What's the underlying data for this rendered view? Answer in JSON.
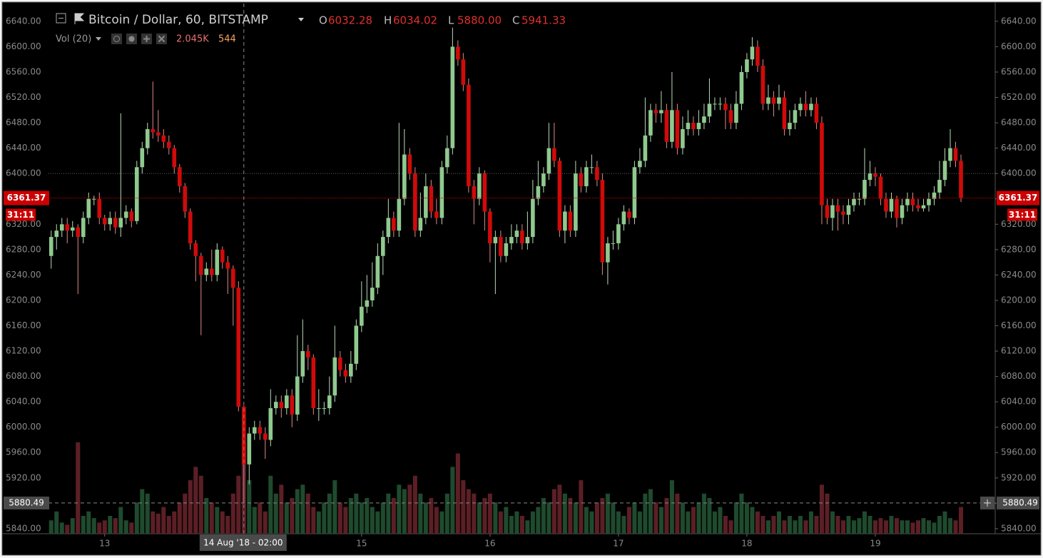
{
  "chart_data": {
    "type": "candlestick",
    "title": "Bitcoin / Dollar, 60, BITSTAMP",
    "ohlc_names": [
      "O",
      "H",
      "L",
      "C"
    ],
    "hover": {
      "index": 36,
      "time_label": "14 Aug '18 - 02:00",
      "price": 5880.49,
      "ohlc_labels": [
        "6032.28",
        "6034.02",
        "5880.00",
        "5941.33"
      ]
    },
    "volume_indicator": {
      "name": "Vol (20)",
      "value_label": "2.045K",
      "ma": 544
    },
    "countdown": "31:11",
    "reference_line": 6400,
    "up_color": "#8fc98f",
    "down_color": "#d10a0a",
    "up_volume_color": "#1f4a2e",
    "down_volume_color": "#5c1f26",
    "open": [
      6270,
      6300,
      6310,
      6320,
      6310,
      6315,
      6300,
      6330,
      6360,
      6360,
      6330,
      6320,
      6330,
      6315,
      6330,
      6340,
      6325,
      6410,
      6440,
      6470,
      6465,
      6460,
      6450,
      6440,
      6410,
      6380,
      6340,
      6290,
      6270,
      6240,
      6250,
      6240,
      6280,
      6260,
      6250,
      6220,
      6032.28,
      5941.33,
      5990,
      6000,
      5990,
      5980,
      6030,
      6040,
      6030,
      6050,
      6020,
      6080,
      6120,
      6110,
      6030,
      6030,
      6030,
      6050,
      6110,
      6090,
      6080,
      6100,
      6160,
      6190,
      6200,
      6220,
      6270,
      6300,
      6330,
      6310,
      6360,
      6430,
      6400,
      6310,
      6330,
      6380,
      6340,
      6330,
      6410,
      6440,
      6600,
      6580,
      6540,
      6380,
      6360,
      6400,
      6340,
      6290,
      6300,
      6270,
      6290,
      6300,
      6310,
      6290,
      6300,
      6360,
      6380,
      6400,
      6440,
      6420,
      6310,
      6340,
      6310,
      6400,
      6380,
      6410,
      6410,
      6390,
      6260,
      6290,
      6290,
      6320,
      6340,
      6330,
      6410,
      6420,
      6460,
      6500,
      6495,
      6500,
      6450,
      6500,
      6440,
      6470,
      6480,
      6470,
      6480,
      6490,
      6510,
      6510,
      6510,
      6500,
      6480,
      6510,
      6560,
      6580,
      6600,
      6570,
      6510,
      6520,
      6510,
      6520,
      6470,
      6480,
      6500,
      6510,
      6500,
      6510,
      6480,
      6350,
      6330,
      6350,
      6340,
      6335,
      6350,
      6360,
      6360,
      6390,
      6400,
      6395,
      6360,
      6340,
      6360,
      6330,
      6350,
      6360,
      6350,
      6345,
      6350,
      6360,
      6370,
      6390,
      6420,
      6440,
      6420
    ],
    "high": [
      6310,
      6320,
      6330,
      6330,
      6325,
      6320,
      6340,
      6370,
      6365,
      6370,
      6335,
      6340,
      6340,
      6495,
      6350,
      6345,
      6420,
      6450,
      6480,
      6545,
      6500,
      6470,
      6460,
      6445,
      6415,
      6385,
      6345,
      6295,
      6275,
      6260,
      6280,
      6290,
      6285,
      6270,
      6255,
      6230,
      6034.02,
      6000,
      6010,
      6010,
      6000,
      6060,
      6050,
      6050,
      6060,
      6060,
      6145,
      6170,
      6130,
      6115,
      6060,
      6040,
      6080,
      6160,
      6120,
      6100,
      6120,
      6170,
      6230,
      6240,
      6260,
      6290,
      6310,
      6360,
      6340,
      6480,
      6470,
      6440,
      6410,
      6370,
      6400,
      6390,
      6360,
      6420,
      6460,
      6630,
      6610,
      6590,
      6550,
      6390,
      6410,
      6405,
      6345,
      6310,
      6310,
      6300,
      6320,
      6320,
      6320,
      6340,
      6390,
      6420,
      6410,
      6480,
      6480,
      6425,
      6350,
      6350,
      6420,
      6410,
      6420,
      6430,
      6420,
      6400,
      6300,
      6310,
      6330,
      6350,
      6345,
      6420,
      6440,
      6520,
      6510,
      6510,
      6530,
      6510,
      6560,
      6510,
      6490,
      6500,
      6490,
      6500,
      6510,
      6550,
      6520,
      6520,
      6520,
      6510,
      6530,
      6570,
      6590,
      6615,
      6610,
      6580,
      6540,
      6530,
      6540,
      6530,
      6500,
      6510,
      6520,
      6530,
      6520,
      6520,
      6490,
      6360,
      6360,
      6360,
      6350,
      6360,
      6370,
      6370,
      6440,
      6420,
      6410,
      6400,
      6370,
      6370,
      6365,
      6360,
      6370,
      6370,
      6360,
      6360,
      6370,
      6380,
      6420,
      6440,
      6470,
      6450,
      6430
    ],
    "low": [
      6250,
      6280,
      6300,
      6290,
      6300,
      6210,
      6290,
      6320,
      6350,
      6320,
      6310,
      6310,
      6305,
      6300,
      6320,
      6315,
      6320,
      6400,
      6430,
      6455,
      6450,
      6440,
      6430,
      6400,
      6370,
      6330,
      6280,
      6230,
      6145,
      6230,
      6230,
      6230,
      6250,
      6210,
      6160,
      6025,
      5880,
      5910,
      5980,
      5980,
      5950,
      5970,
      6020,
      6015,
      6020,
      6000,
      6010,
      6070,
      6090,
      6020,
      6010,
      6020,
      6020,
      6040,
      6080,
      6070,
      6070,
      6090,
      6150,
      6180,
      6190,
      6210,
      6240,
      6290,
      6300,
      6300,
      6350,
      6390,
      6300,
      6300,
      6320,
      6330,
      6320,
      6320,
      6400,
      6430,
      6570,
      6530,
      6370,
      6320,
      6350,
      6310,
      6260,
      6210,
      6260,
      6260,
      6280,
      6290,
      6280,
      6280,
      6290,
      6350,
      6370,
      6390,
      6410,
      6300,
      6290,
      6300,
      6300,
      6370,
      6370,
      6400,
      6380,
      6240,
      6225,
      6280,
      6280,
      6310,
      6320,
      6320,
      6400,
      6410,
      6450,
      6480,
      6480,
      6440,
      6440,
      6430,
      6430,
      6460,
      6460,
      6460,
      6470,
      6480,
      6500,
      6500,
      6470,
      6470,
      6470,
      6500,
      6550,
      6570,
      6560,
      6500,
      6500,
      6490,
      6500,
      6460,
      6460,
      6470,
      6490,
      6490,
      6490,
      6470,
      6320,
      6320,
      6310,
      6310,
      6320,
      6320,
      6340,
      6350,
      6350,
      6380,
      6380,
      6350,
      6330,
      6330,
      6315,
      6320,
      6340,
      6340,
      6340,
      6340,
      6340,
      6350,
      6360,
      6380,
      6410,
      6410,
      6355
    ],
    "close": [
      6300,
      6310,
      6320,
      6310,
      6315,
      6300,
      6330,
      6360,
      6360,
      6330,
      6320,
      6330,
      6315,
      6330,
      6340,
      6325,
      6410,
      6440,
      6470,
      6465,
      6460,
      6450,
      6440,
      6410,
      6380,
      6340,
      6290,
      6270,
      6240,
      6250,
      6240,
      6280,
      6260,
      6250,
      6220,
      6032.28,
      5941.33,
      5990,
      6000,
      5990,
      5980,
      6030,
      6040,
      6030,
      6050,
      6020,
      6080,
      6120,
      6110,
      6030,
      6030,
      6030,
      6050,
      6110,
      6090,
      6080,
      6100,
      6160,
      6190,
      6200,
      6220,
      6270,
      6300,
      6330,
      6310,
      6360,
      6430,
      6400,
      6310,
      6330,
      6380,
      6340,
      6330,
      6410,
      6440,
      6600,
      6580,
      6540,
      6380,
      6360,
      6400,
      6340,
      6290,
      6300,
      6270,
      6290,
      6300,
      6310,
      6290,
      6300,
      6360,
      6380,
      6400,
      6440,
      6420,
      6310,
      6340,
      6310,
      6400,
      6380,
      6410,
      6410,
      6390,
      6260,
      6290,
      6290,
      6320,
      6340,
      6330,
      6410,
      6420,
      6460,
      6500,
      6495,
      6500,
      6450,
      6500,
      6440,
      6470,
      6480,
      6470,
      6480,
      6490,
      6510,
      6510,
      6510,
      6500,
      6480,
      6510,
      6560,
      6580,
      6600,
      6570,
      6510,
      6520,
      6510,
      6520,
      6470,
      6480,
      6500,
      6510,
      6500,
      6510,
      6480,
      6350,
      6330,
      6350,
      6340,
      6335,
      6350,
      6360,
      6360,
      6390,
      6400,
      6395,
      6360,
      6340,
      6360,
      6330,
      6350,
      6360,
      6350,
      6345,
      6350,
      6360,
      6370,
      6390,
      6420,
      6440,
      6420,
      6361.37
    ],
    "volume": [
      300,
      500,
      250,
      200,
      350,
      2050,
      400,
      500,
      350,
      250,
      300,
      400,
      350,
      600,
      300,
      250,
      700,
      1000,
      900,
      500,
      450,
      600,
      400,
      500,
      700,
      900,
      1200,
      1500,
      1300,
      800,
      700,
      600,
      500,
      400,
      900,
      1300,
      2045,
      1200,
      600,
      700,
      500,
      1300,
      900,
      1100,
      700,
      800,
      1000,
      1100,
      900,
      600,
      500,
      700,
      900,
      1200,
      700,
      600,
      800,
      900,
      700,
      800,
      600,
      500,
      700,
      900,
      800,
      1100,
      1000,
      1100,
      1300,
      900,
      700,
      800,
      600,
      500,
      900,
      1500,
      1800,
      1200,
      1000,
      900,
      700,
      800,
      900,
      700,
      500,
      600,
      400,
      500,
      400,
      300,
      500,
      600,
      800,
      700,
      1000,
      1100,
      900,
      800,
      700,
      1200,
      600,
      500,
      700,
      800,
      900,
      700,
      500,
      400,
      600,
      700,
      500,
      900,
      1000,
      700,
      600,
      800,
      1200,
      900,
      700,
      500,
      600,
      700,
      900,
      800,
      500,
      600,
      400,
      300,
      700,
      900,
      700,
      600,
      500,
      400,
      300,
      400,
      500,
      300,
      400,
      300,
      400,
      300,
      500,
      400,
      1100,
      900,
      500,
      400,
      300,
      400,
      300,
      350,
      500,
      400,
      300,
      350,
      300,
      400,
      350,
      300,
      300,
      250,
      300,
      350,
      300,
      250,
      400,
      500,
      350,
      300,
      600
    ],
    "xlim": [
      -0.5,
      176.4
    ],
    "xticks": [
      {
        "value": 10,
        "label": "13"
      },
      {
        "value": 34,
        "label": "14"
      },
      {
        "value": 58,
        "label": "15"
      },
      {
        "value": 82,
        "label": "16"
      },
      {
        "value": 106,
        "label": "17"
      },
      {
        "value": 130,
        "label": "18"
      },
      {
        "value": 154,
        "label": "19"
      }
    ],
    "ylim": [
      5832,
      6668
    ],
    "yticks": [
      {
        "value": 5840,
        "label": "5840.00"
      },
      {
        "value": 5880,
        "label": "5880.00"
      },
      {
        "value": 5920,
        "label": "5920.00"
      },
      {
        "value": 5960,
        "label": "5960.00"
      },
      {
        "value": 6000,
        "label": "6000.00"
      },
      {
        "value": 6040,
        "label": "6040.00"
      },
      {
        "value": 6080,
        "label": "6080.00"
      },
      {
        "value": 6120,
        "label": "6120.00"
      },
      {
        "value": 6160,
        "label": "6160.00"
      },
      {
        "value": 6200,
        "label": "6200.00"
      },
      {
        "value": 6240,
        "label": "6240.00"
      },
      {
        "value": 6280,
        "label": "6280.00"
      },
      {
        "value": 6320,
        "label": "6320.00"
      },
      {
        "value": 6360,
        "label": "6360.00"
      },
      {
        "value": 6400,
        "label": "6400.00"
      },
      {
        "value": 6440,
        "label": "6440.00"
      },
      {
        "value": 6480,
        "label": "6480.00"
      },
      {
        "value": 6520,
        "label": "6520.00"
      },
      {
        "value": 6560,
        "label": "6560.00"
      },
      {
        "value": 6600,
        "label": "6600.00"
      },
      {
        "value": 6640,
        "label": "6640.00"
      }
    ],
    "y2lim": [
      0,
      2400
    ]
  }
}
